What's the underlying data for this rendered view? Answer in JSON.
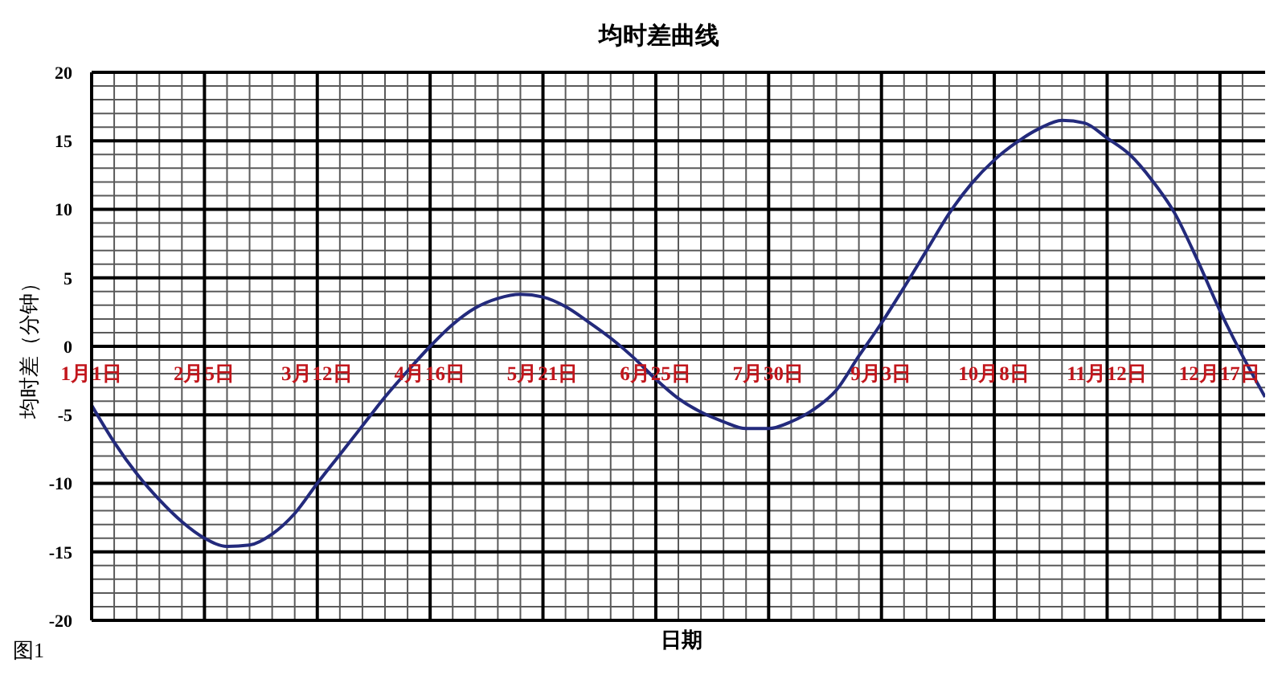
{
  "chart_data": {
    "type": "line",
    "title": "均时差曲线",
    "xlabel": "日期",
    "ylabel": "均时差（分钟）",
    "annotations": [
      "图1"
    ],
    "x": [
      "--01-01",
      "--01-08",
      "--01-15",
      "--01-22",
      "--01-29",
      "--02-05",
      "--02-12",
      "--02-19",
      "--02-26",
      "--03-05",
      "--03-12",
      "--03-19",
      "--03-26",
      "--04-02",
      "--04-09",
      "--04-16",
      "--04-23",
      "--04-30",
      "--05-07",
      "--05-14",
      "--05-21",
      "--05-28",
      "--06-04",
      "--06-11",
      "--06-18",
      "--06-25",
      "--07-02",
      "--07-09",
      "--07-16",
      "--07-23",
      "--07-30",
      "--08-06",
      "--08-13",
      "--08-20",
      "--08-27",
      "--09-03",
      "--09-10",
      "--09-17",
      "--09-24",
      "--10-01",
      "--10-08",
      "--10-15",
      "--10-22",
      "--10-29",
      "--11-05",
      "--11-12",
      "--11-19",
      "--11-26",
      "--12-03",
      "--12-10",
      "--12-17",
      "--12-24",
      "--12-31"
    ],
    "values": [
      -4.3,
      -7.0,
      -9.3,
      -11.2,
      -12.8,
      -14.0,
      -14.6,
      -14.5,
      -13.7,
      -12.2,
      -10.0,
      -7.9,
      -5.8,
      -3.7,
      -1.8,
      0.0,
      1.6,
      2.8,
      3.5,
      3.8,
      3.6,
      2.9,
      1.8,
      0.6,
      -0.8,
      -2.4,
      -3.8,
      -4.8,
      -5.5,
      -6.0,
      -6.0,
      -5.5,
      -4.6,
      -3.2,
      -0.7,
      1.7,
      4.3,
      7.0,
      9.7,
      11.9,
      13.6,
      14.9,
      15.9,
      16.5,
      16.3,
      15.2,
      14.0,
      12.1,
      9.7,
      6.3,
      2.6,
      -0.7,
      -3.7
    ],
    "color": "#232a7c",
    "xlim": [
      "--01-01",
      "--12-31"
    ],
    "xticks": [
      {
        "value": "--01-01",
        "label": "1月1日"
      },
      {
        "value": "--01-08",
        "label": null
      },
      {
        "value": "--01-15",
        "label": null
      },
      {
        "value": "--01-22",
        "label": null
      },
      {
        "value": "--01-29",
        "label": null
      },
      {
        "value": "--02-05",
        "label": "2月5日"
      },
      {
        "value": "--02-12",
        "label": null
      },
      {
        "value": "--02-19",
        "label": null
      },
      {
        "value": "--02-26",
        "label": null
      },
      {
        "value": "--03-05",
        "label": null
      },
      {
        "value": "--03-12",
        "label": "3月12日"
      },
      {
        "value": "--03-19",
        "label": null
      },
      {
        "value": "--03-26",
        "label": null
      },
      {
        "value": "--04-02",
        "label": null
      },
      {
        "value": "--04-09",
        "label": null
      },
      {
        "value": "--04-16",
        "label": "4月16日"
      },
      {
        "value": "--04-23",
        "label": null
      },
      {
        "value": "--04-30",
        "label": null
      },
      {
        "value": "--05-07",
        "label": null
      },
      {
        "value": "--05-14",
        "label": null
      },
      {
        "value": "--05-21",
        "label": "5月21日"
      },
      {
        "value": "--05-28",
        "label": null
      },
      {
        "value": "--06-04",
        "label": null
      },
      {
        "value": "--06-11",
        "label": null
      },
      {
        "value": "--06-18",
        "label": null
      },
      {
        "value": "--06-25",
        "label": "6月25日"
      },
      {
        "value": "--07-02",
        "label": null
      },
      {
        "value": "--07-09",
        "label": null
      },
      {
        "value": "--07-16",
        "label": null
      },
      {
        "value": "--07-23",
        "label": null
      },
      {
        "value": "--07-30",
        "label": "7月30日"
      },
      {
        "value": "--08-06",
        "label": null
      },
      {
        "value": "--08-13",
        "label": null
      },
      {
        "value": "--08-20",
        "label": null
      },
      {
        "value": "--08-27",
        "label": null
      },
      {
        "value": "--09-03",
        "label": "9月3日"
      },
      {
        "value": "--09-10",
        "label": null
      },
      {
        "value": "--09-17",
        "label": null
      },
      {
        "value": "--09-24",
        "label": null
      },
      {
        "value": "--10-01",
        "label": null
      },
      {
        "value": "--10-08",
        "label": "10月8日"
      },
      {
        "value": "--10-15",
        "label": null
      },
      {
        "value": "--10-22",
        "label": null
      },
      {
        "value": "--10-29",
        "label": null
      },
      {
        "value": "--11-05",
        "label": null
      },
      {
        "value": "--11-12",
        "label": "11月12日"
      },
      {
        "value": "--11-19",
        "label": null
      },
      {
        "value": "--11-26",
        "label": null
      },
      {
        "value": "--12-03",
        "label": null
      },
      {
        "value": "--12-10",
        "label": null
      },
      {
        "value": "--12-17",
        "label": "12月17日"
      },
      {
        "value": "--12-24",
        "label": null
      }
    ],
    "ylim": [
      -20,
      20
    ],
    "yticks": [
      -20,
      {
        "value": -19,
        "label": null
      },
      {
        "value": -18,
        "label": null
      },
      {
        "value": -17,
        "label": null
      },
      {
        "value": -16,
        "label": null
      },
      -15,
      {
        "value": -14,
        "label": null
      },
      {
        "value": -13,
        "label": null
      },
      {
        "value": -12,
        "label": null
      },
      {
        "value": -11,
        "label": null
      },
      -10,
      {
        "value": -9,
        "label": null
      },
      {
        "value": -8,
        "label": null
      },
      {
        "value": -7,
        "label": null
      },
      {
        "value": -6,
        "label": null
      },
      -5,
      {
        "value": -4,
        "label": null
      },
      {
        "value": -3,
        "label": null
      },
      {
        "value": -2,
        "label": null
      },
      {
        "value": -1,
        "label": null
      },
      0,
      {
        "value": 1,
        "label": null
      },
      {
        "value": 2,
        "label": null
      },
      {
        "value": 3,
        "label": null
      },
      {
        "value": 4,
        "label": null
      },
      5,
      {
        "value": 6,
        "label": null
      },
      {
        "value": 7,
        "label": null
      },
      {
        "value": 8,
        "label": null
      },
      {
        "value": 9,
        "label": null
      },
      10,
      {
        "value": 11,
        "label": null
      },
      {
        "value": 12,
        "label": null
      },
      {
        "value": 13,
        "label": null
      },
      {
        "value": 14,
        "label": null
      },
      15,
      {
        "value": 16,
        "label": null
      },
      {
        "value": 17,
        "label": null
      },
      {
        "value": 18,
        "label": null
      },
      {
        "value": 19,
        "label": null
      },
      20
    ],
    "grid": true
  }
}
